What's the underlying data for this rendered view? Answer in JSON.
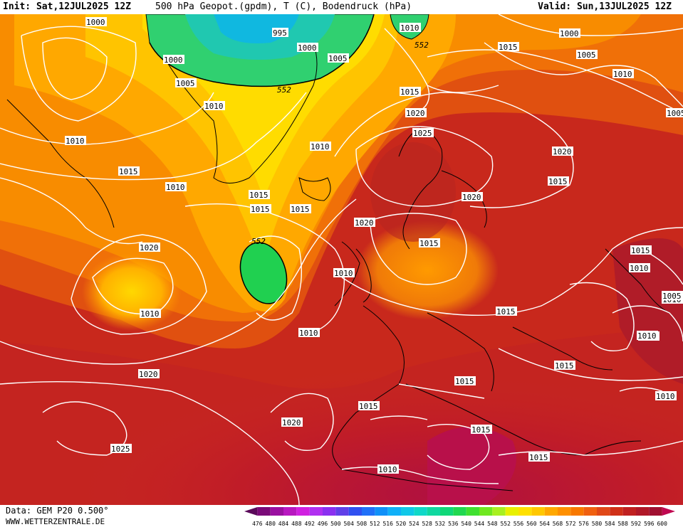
{
  "header": {
    "init": "Init: Sat,12JUL2025 12Z",
    "title": "500 hPa Geopot.(gpdm), T (C), Bodendruck (hPa)",
    "valid": "Valid: Sun,13JUL2025 12Z"
  },
  "footer": {
    "data_source": "Data: GEM P20 0.500°",
    "website": "WWW.WETTERZENTRALE.DE"
  },
  "legend": {
    "ticks": [
      "476",
      "480",
      "484",
      "488",
      "492",
      "496",
      "500",
      "504",
      "508",
      "512",
      "516",
      "520",
      "524",
      "528",
      "532",
      "536",
      "540",
      "544",
      "548",
      "552",
      "556",
      "560",
      "564",
      "568",
      "572",
      "576",
      "580",
      "584",
      "588",
      "592",
      "596",
      "600"
    ],
    "colors": [
      "#5a0a5a",
      "#7a0a78",
      "#9a10a0",
      "#b818c0",
      "#d020e0",
      "#b030f0",
      "#8a30f0",
      "#6040e8",
      "#3050f0",
      "#2070f8",
      "#1090f8",
      "#10b0f8",
      "#10c8e8",
      "#10d8c8",
      "#10d8a0",
      "#10d878",
      "#20d850",
      "#40e030",
      "#70e820",
      "#a8f020",
      "#e8f000",
      "#ffe000",
      "#ffc800",
      "#ffa800",
      "#ff9000",
      "#f87800",
      "#f06010",
      "#e04818",
      "#d03018",
      "#c02020",
      "#b01828",
      "#a01030",
      "#c00850"
    ],
    "range": [
      476,
      600
    ],
    "unit_step": 4
  },
  "map": {
    "pressure_labels": [
      "1000",
      "995",
      "1000",
      "1005",
      "1000",
      "1005",
      "1010",
      "1010",
      "552",
      "552",
      "1010",
      "1015",
      "1000",
      "1005",
      "1010",
      "1005",
      "1010",
      "1015",
      "1015",
      "1010",
      "1015",
      "1015",
      "1015",
      "1020",
      "1025",
      "1020",
      "1015",
      "1020",
      "1020",
      "1020",
      "1015",
      "552",
      "1010",
      "1015",
      "1010",
      "1010",
      "1015",
      "1015",
      "1015",
      "1010",
      "1020",
      "1010",
      "1015",
      "1015",
      "1010",
      "1005",
      "1010",
      "1015",
      "1015",
      "1020",
      "1025",
      "1015",
      "1015",
      "1010",
      "1010",
      "1015"
    ],
    "geopotential_contour": "552",
    "colors": {
      "background_warm": "#c41f1f",
      "contour_isobar": "#ffffff",
      "contour_geopotential": "#000000",
      "coastline": "#000000"
    }
  }
}
